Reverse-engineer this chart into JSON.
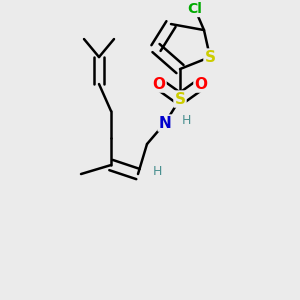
{
  "bg_color": "#ebebeb",
  "bond_color": "#000000",
  "bond_width": 1.8,
  "atom_bg": "#ebebeb",
  "atoms": {
    "S_sulfonamide": {
      "label": "S",
      "color": "#cccc00"
    },
    "N": {
      "label": "N",
      "color": "#0000cc"
    },
    "H_N": {
      "label": "H",
      "color": "#4a9090"
    },
    "O1": {
      "label": "O",
      "color": "#ff0000"
    },
    "O2": {
      "label": "O",
      "color": "#ff0000"
    },
    "S_thiophene": {
      "label": "S",
      "color": "#cccc00"
    },
    "Cl": {
      "label": "Cl",
      "color": "#00aa00"
    },
    "H_vinyl": {
      "label": "H",
      "color": "#4a9090"
    }
  }
}
